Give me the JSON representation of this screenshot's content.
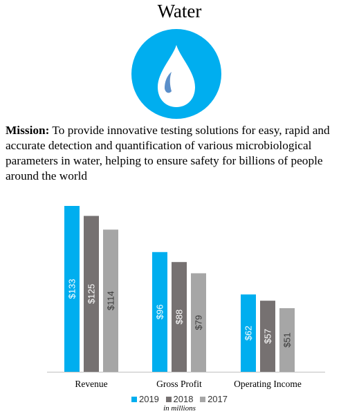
{
  "header": {
    "title": "Water"
  },
  "icon": {
    "name": "water-drop-icon",
    "badge_color": "#00aeef",
    "drop_color": "#ffffff",
    "highlight_color": "#5b8fc9"
  },
  "mission": {
    "label": "Mission:",
    "text": " To provide innovative testing solutions for easy, rapid and accurate detection and quantification of various microbiological parameters in water, helping to ensure safety for billions of people around the world"
  },
  "chart_data": {
    "type": "bar",
    "categories": [
      "Revenue",
      "Gross Profit",
      "Operating Income"
    ],
    "series": [
      {
        "name": "2019",
        "color": "#00aeef",
        "values": [
          133,
          96,
          62
        ],
        "labels": [
          "$133",
          "$96",
          "$62"
        ]
      },
      {
        "name": "2018",
        "color": "#767171",
        "values": [
          125,
          88,
          57
        ],
        "labels": [
          "$125",
          "$88",
          "$57"
        ]
      },
      {
        "name": "2017",
        "color": "#a6a6a6",
        "values": [
          114,
          79,
          51
        ],
        "labels": [
          "$114",
          "$79",
          "$51"
        ]
      }
    ],
    "ylim": [
      0,
      133
    ],
    "grid": false,
    "legend_placement": "bottom",
    "units_note": "in millions"
  }
}
